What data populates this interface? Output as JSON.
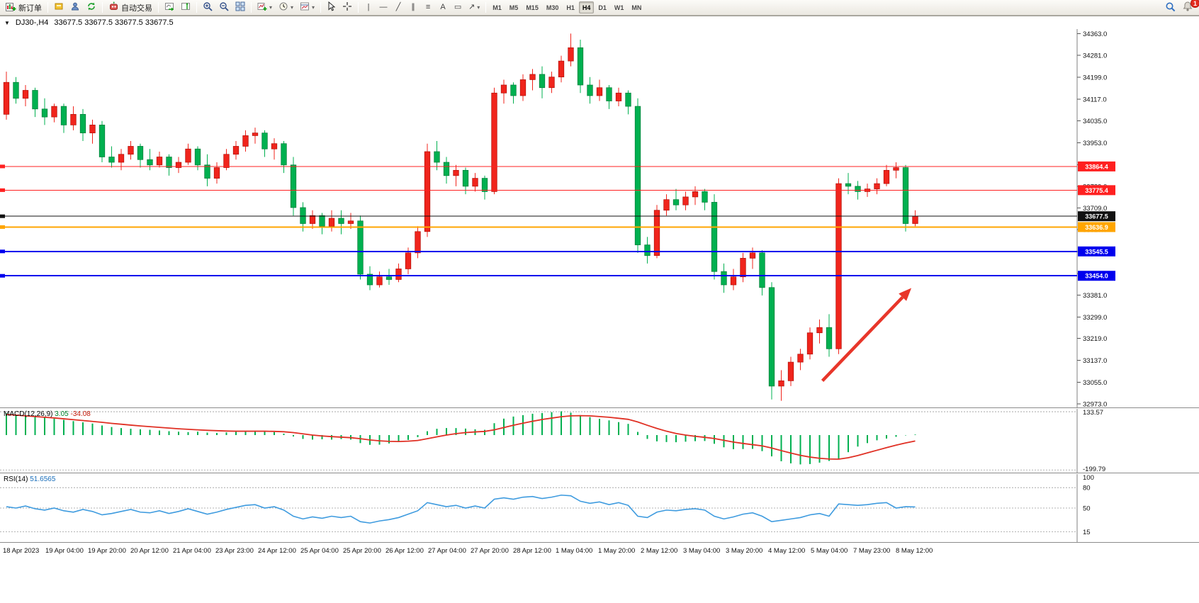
{
  "toolbar": {
    "new_order_label": "新订单",
    "auto_trading_label": "自动交易",
    "timeframes": [
      "M1",
      "M5",
      "M15",
      "M30",
      "H1",
      "H4",
      "D1",
      "W1",
      "MN"
    ],
    "active_timeframe": "H4",
    "notification_count": "1"
  },
  "chart": {
    "title": "DJ30-,H4",
    "quote": "33677.5 33677.5 33677.5 33677.5"
  },
  "chart_data": [
    {
      "type": "candlestick",
      "symbol": "DJ30-",
      "timeframe": "H4",
      "up_color": "#f0241c",
      "down_color": "#00b050",
      "ylim": [
        32960,
        34380
      ],
      "y_ticks": [
        "34363.0",
        "34281.0",
        "34199.0",
        "34117.0",
        "34035.0",
        "33953.0",
        "33871.0",
        "33789.0",
        "33709.0",
        "33627.0",
        "33545.0",
        "33463.0",
        "33381.0",
        "33299.0",
        "33219.0",
        "33137.0",
        "33055.0",
        "32973.0"
      ],
      "x_labels": [
        "18 Apr 2023",
        "19 Apr 04:00",
        "19 Apr 20:00",
        "20 Apr 12:00",
        "21 Apr 04:00",
        "23 Apr 23:00",
        "24 Apr 12:00",
        "25 Apr 04:00",
        "25 Apr 20:00",
        "26 Apr 12:00",
        "27 Apr 04:00",
        "27 Apr 20:00",
        "28 Apr 12:00",
        "1 May 04:00",
        "1 May 20:00",
        "2 May 12:00",
        "3 May 04:00",
        "3 May 20:00",
        "4 May 12:00",
        "5 May 04:00",
        "7 May 23:00",
        "8 May 12:00"
      ],
      "hlines": [
        {
          "price": 33864.4,
          "label": "33864.4",
          "color": "#ff2020",
          "width": 1.2
        },
        {
          "price": 33775.4,
          "label": "33775.4",
          "color": "#ff2020",
          "width": 1.2
        },
        {
          "price": 33677.5,
          "label": "33677.5",
          "color": "#111111",
          "width": 1
        },
        {
          "price": 33636.9,
          "label": "33636.9",
          "color": "#ffa500",
          "width": 2
        },
        {
          "price": 33545.5,
          "label": "33545.5",
          "color": "#0000ee",
          "width": 2
        },
        {
          "price": 33454.0,
          "label": "33454.0",
          "color": "#0000ee",
          "width": 2
        }
      ],
      "annotation_arrow": {
        "from_index": 85.3,
        "from_price": 33060,
        "to_index": 94.6,
        "to_price": 33408,
        "color": "#e8362a"
      },
      "ohlc": [
        [
          34060,
          34220,
          34040,
          34180
        ],
        [
          34180,
          34200,
          34100,
          34120
        ],
        [
          34120,
          34170,
          34090,
          34150
        ],
        [
          34150,
          34160,
          34050,
          34080
        ],
        [
          34080,
          34120,
          34020,
          34050
        ],
        [
          34050,
          34100,
          34030,
          34090
        ],
        [
          34090,
          34100,
          33990,
          34020
        ],
        [
          34020,
          34090,
          34000,
          34060
        ],
        [
          34060,
          34080,
          33960,
          33990
        ],
        [
          33990,
          34040,
          33950,
          34020
        ],
        [
          34020,
          34035,
          33880,
          33900
        ],
        [
          33900,
          33940,
          33860,
          33880
        ],
        [
          33880,
          33930,
          33850,
          33910
        ],
        [
          33910,
          33960,
          33890,
          33940
        ],
        [
          33940,
          33950,
          33860,
          33890
        ],
        [
          33890,
          33930,
          33850,
          33870
        ],
        [
          33870,
          33920,
          33860,
          33900
        ],
        [
          33900,
          33910,
          33830,
          33860
        ],
        [
          33860,
          33900,
          33840,
          33880
        ],
        [
          33880,
          33950,
          33870,
          33930
        ],
        [
          33930,
          33940,
          33850,
          33870
        ],
        [
          33870,
          33910,
          33790,
          33820
        ],
        [
          33820,
          33880,
          33800,
          33860
        ],
        [
          33860,
          33930,
          33850,
          33910
        ],
        [
          33910,
          33960,
          33890,
          33940
        ],
        [
          33940,
          34000,
          33920,
          33980
        ],
        [
          33980,
          34010,
          33950,
          33990
        ],
        [
          33990,
          34000,
          33900,
          33930
        ],
        [
          33930,
          33970,
          33890,
          33950
        ],
        [
          33950,
          33960,
          33840,
          33870
        ],
        [
          33870,
          33900,
          33680,
          33710
        ],
        [
          33710,
          33730,
          33620,
          33650
        ],
        [
          33650,
          33700,
          33630,
          33680
        ],
        [
          33680,
          33690,
          33610,
          33640
        ],
        [
          33640,
          33700,
          33620,
          33670
        ],
        [
          33670,
          33700,
          33610,
          33650
        ],
        [
          33650,
          33690,
          33630,
          33660
        ],
        [
          33660,
          33680,
          33440,
          33460
        ],
        [
          33460,
          33490,
          33400,
          33420
        ],
        [
          33420,
          33470,
          33410,
          33450
        ],
        [
          33450,
          33480,
          33420,
          33440
        ],
        [
          33440,
          33500,
          33430,
          33480
        ],
        [
          33480,
          33560,
          33460,
          33540
        ],
        [
          33540,
          33640,
          33520,
          33620
        ],
        [
          33620,
          33950,
          33600,
          33920
        ],
        [
          33920,
          33960,
          33850,
          33880
        ],
        [
          33880,
          33900,
          33800,
          33830
        ],
        [
          33830,
          33870,
          33790,
          33850
        ],
        [
          33850,
          33860,
          33760,
          33790
        ],
        [
          33790,
          33840,
          33770,
          33820
        ],
        [
          33820,
          33830,
          33740,
          33770
        ],
        [
          33770,
          34160,
          33760,
          34140
        ],
        [
          34140,
          34190,
          34100,
          34170
        ],
        [
          34170,
          34180,
          34100,
          34130
        ],
        [
          34130,
          34210,
          34110,
          34190
        ],
        [
          34190,
          34230,
          34150,
          34210
        ],
        [
          34210,
          34240,
          34120,
          34160
        ],
        [
          34160,
          34220,
          34140,
          34200
        ],
        [
          34200,
          34280,
          34180,
          34260
        ],
        [
          34260,
          34363,
          34240,
          34310
        ],
        [
          34310,
          34340,
          34140,
          34170
        ],
        [
          34170,
          34200,
          34100,
          34130
        ],
        [
          34130,
          34190,
          34110,
          34160
        ],
        [
          34160,
          34170,
          34080,
          34110
        ],
        [
          34110,
          34160,
          34090,
          34140
        ],
        [
          34140,
          34150,
          34060,
          34090
        ],
        [
          34090,
          34120,
          33540,
          33570
        ],
        [
          33570,
          33600,
          33500,
          33530
        ],
        [
          33530,
          33720,
          33520,
          33700
        ],
        [
          33700,
          33760,
          33680,
          33740
        ],
        [
          33740,
          33780,
          33700,
          33720
        ],
        [
          33720,
          33770,
          33700,
          33750
        ],
        [
          33750,
          33790,
          33720,
          33770
        ],
        [
          33770,
          33780,
          33700,
          33730
        ],
        [
          33730,
          33760,
          33440,
          33470
        ],
        [
          33470,
          33500,
          33390,
          33420
        ],
        [
          33420,
          33480,
          33400,
          33450
        ],
        [
          33450,
          33540,
          33430,
          33520
        ],
        [
          33520,
          33560,
          33480,
          33540
        ],
        [
          33540,
          33550,
          33380,
          33410
        ],
        [
          33410,
          33430,
          32990,
          33040
        ],
        [
          33040,
          33100,
          32985,
          33060
        ],
        [
          33060,
          33150,
          33040,
          33130
        ],
        [
          33130,
          33180,
          33100,
          33160
        ],
        [
          33160,
          33260,
          33140,
          33240
        ],
        [
          33240,
          33290,
          33200,
          33260
        ],
        [
          33260,
          33310,
          33150,
          33180
        ],
        [
          33180,
          33820,
          33160,
          33800
        ],
        [
          33800,
          33840,
          33760,
          33790
        ],
        [
          33790,
          33810,
          33740,
          33770
        ],
        [
          33770,
          33800,
          33750,
          33780
        ],
        [
          33780,
          33820,
          33760,
          33800
        ],
        [
          33800,
          33870,
          33790,
          33850
        ],
        [
          33850,
          33880,
          33820,
          33860
        ],
        [
          33860,
          33870,
          33620,
          33650
        ],
        [
          33650,
          33700,
          33640,
          33677.5
        ]
      ]
    },
    {
      "type": "bar",
      "title": "MACD(12,26,9)",
      "value_main": "3.05",
      "value_signal": "-34.08",
      "histogram_color": "#00b050",
      "signal_color": "#e03024",
      "ylim": [
        -215,
        150
      ],
      "levels": [
        133.57,
        -199.79
      ],
      "axis_labels": [
        "133.57",
        "-199.79"
      ],
      "histogram": [
        125,
        118,
        112,
        106,
        100,
        94,
        87,
        80,
        73,
        66,
        55,
        46,
        40,
        36,
        33,
        30,
        26,
        22,
        19,
        17,
        19,
        14,
        12,
        15,
        18,
        22,
        25,
        22,
        17,
        8,
        -8,
        -22,
        -26,
        -24,
        -26,
        -23,
        -26,
        -46,
        -56,
        -55,
        -48,
        -38,
        -28,
        -12,
        22,
        36,
        40,
        40,
        37,
        33,
        30,
        68,
        94,
        106,
        114,
        122,
        126,
        131,
        136,
        128,
        114,
        103,
        93,
        84,
        74,
        64,
        18,
        -22,
        -36,
        -40,
        -41,
        -38,
        -35,
        -34,
        -50,
        -70,
        -81,
        -80,
        -79,
        -92,
        -122,
        -150,
        -162,
        -168,
        -166,
        -158,
        -148,
        -136,
        -98,
        -66,
        -46,
        -30,
        -20,
        -10,
        -2,
        3.05
      ],
      "signal": [
        118,
        114,
        110,
        106,
        102,
        98,
        93,
        88,
        83,
        78,
        73,
        67,
        62,
        57,
        52,
        48,
        44,
        40,
        36,
        33,
        30,
        27,
        25,
        23,
        22,
        22,
        22,
        22,
        21,
        19,
        14,
        7,
        0,
        -5,
        -9,
        -12,
        -15,
        -21,
        -28,
        -33,
        -36,
        -37,
        -35,
        -31,
        -21,
        -10,
        0,
        8,
        14,
        18,
        21,
        30,
        43,
        56,
        68,
        79,
        89,
        97,
        105,
        110,
        111,
        110,
        106,
        102,
        96,
        90,
        75,
        56,
        38,
        22,
        9,
        0,
        -7,
        -13,
        -20,
        -30,
        -40,
        -48,
        -55,
        -62,
        -74,
        -89,
        -103,
        -116,
        -126,
        -133,
        -137,
        -138,
        -130,
        -117,
        -102,
        -87,
        -72,
        -58,
        -45,
        -34.08
      ]
    },
    {
      "type": "line",
      "title": "RSI(14)",
      "value": "51.6565",
      "line_color": "#3e9bdf",
      "ylim": [
        0,
        100
      ],
      "levels": [
        80,
        50,
        15
      ],
      "axis_values": [
        100,
        80,
        50,
        15
      ],
      "axis_labels": [
        "100",
        "80",
        "50",
        "15"
      ],
      "values": [
        52,
        50,
        53,
        49,
        47,
        50,
        46,
        44,
        48,
        45,
        40,
        42,
        45,
        48,
        44,
        43,
        46,
        42,
        45,
        49,
        45,
        41,
        44,
        48,
        51,
        54,
        55,
        50,
        52,
        47,
        38,
        34,
        37,
        35,
        38,
        36,
        38,
        30,
        28,
        31,
        33,
        36,
        41,
        46,
        58,
        55,
        52,
        54,
        50,
        53,
        50,
        63,
        65,
        63,
        66,
        67,
        64,
        66,
        69,
        68,
        60,
        57,
        59,
        55,
        58,
        54,
        38,
        36,
        44,
        47,
        46,
        48,
        49,
        47,
        38,
        34,
        37,
        41,
        43,
        38,
        30,
        32,
        34,
        36,
        40,
        42,
        38,
        56,
        55,
        54,
        55,
        57,
        58,
        50,
        52,
        51.6565
      ]
    }
  ]
}
